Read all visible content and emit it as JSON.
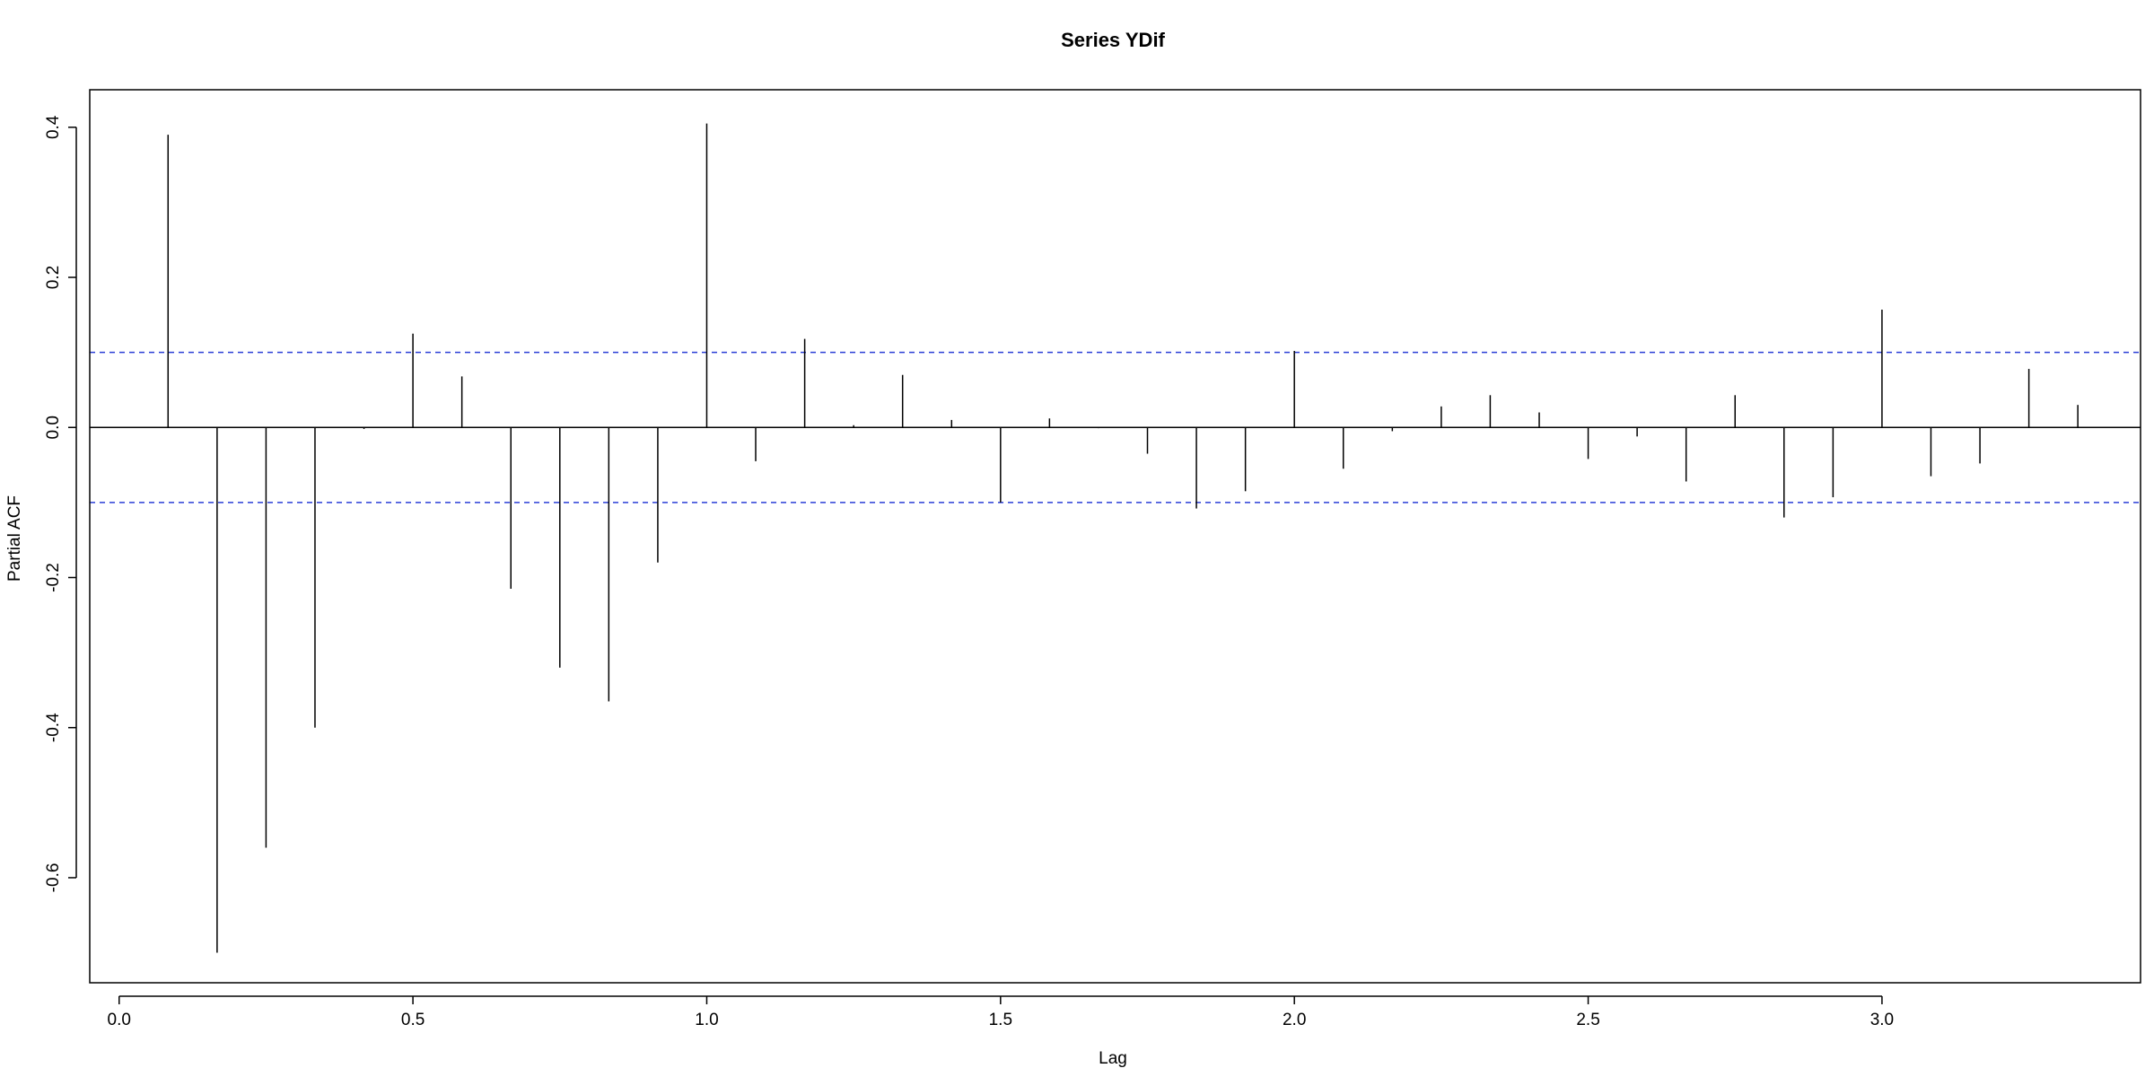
{
  "chart_data": {
    "type": "bar",
    "title": "Series  YDif",
    "xlabel": "Lag",
    "ylabel": "Partial ACF",
    "xlim": [
      -0.05,
      3.44
    ],
    "ylim": [
      -0.74,
      0.45
    ],
    "x_ticks": [
      "0.0",
      "0.5",
      "1.0",
      "1.5",
      "2.0",
      "2.5",
      "3.0"
    ],
    "y_ticks": [
      "-0.6",
      "-0.4",
      "-0.2",
      "0.0",
      "0.2",
      "0.4"
    ],
    "confidence_band": 0.1,
    "colors": {
      "bars": "#000000",
      "band": "#2b3fd6",
      "frame": "#000000"
    },
    "series": [
      {
        "x": [
          0.0833,
          0.1667,
          0.25,
          0.3333,
          0.4167,
          0.5,
          0.5833,
          0.6667,
          0.75,
          0.8333,
          0.9167,
          1.0,
          1.0833,
          1.1667,
          1.25,
          1.3333,
          1.4167,
          1.5,
          1.5833,
          1.6667,
          1.75,
          1.8333,
          1.9167,
          2.0,
          2.0833,
          2.1667,
          2.25,
          2.3333,
          2.4167,
          2.5,
          2.5833,
          2.6667,
          2.75,
          2.8333,
          2.9167,
          3.0,
          3.0833,
          3.1667,
          3.25,
          3.3333
        ],
        "values": [
          0.39,
          -0.7,
          -0.56,
          -0.4,
          -0.002,
          0.125,
          0.068,
          -0.215,
          -0.32,
          -0.365,
          -0.18,
          0.405,
          -0.045,
          0.118,
          0.003,
          0.07,
          0.01,
          -0.1,
          0.012,
          -0.001,
          -0.035,
          -0.108,
          -0.085,
          0.102,
          -0.055,
          -0.005,
          0.028,
          0.043,
          0.02,
          -0.042,
          -0.012,
          -0.072,
          0.043,
          -0.12,
          -0.093,
          0.157,
          -0.065,
          -0.048,
          0.078,
          0.03
        ]
      }
    ]
  }
}
